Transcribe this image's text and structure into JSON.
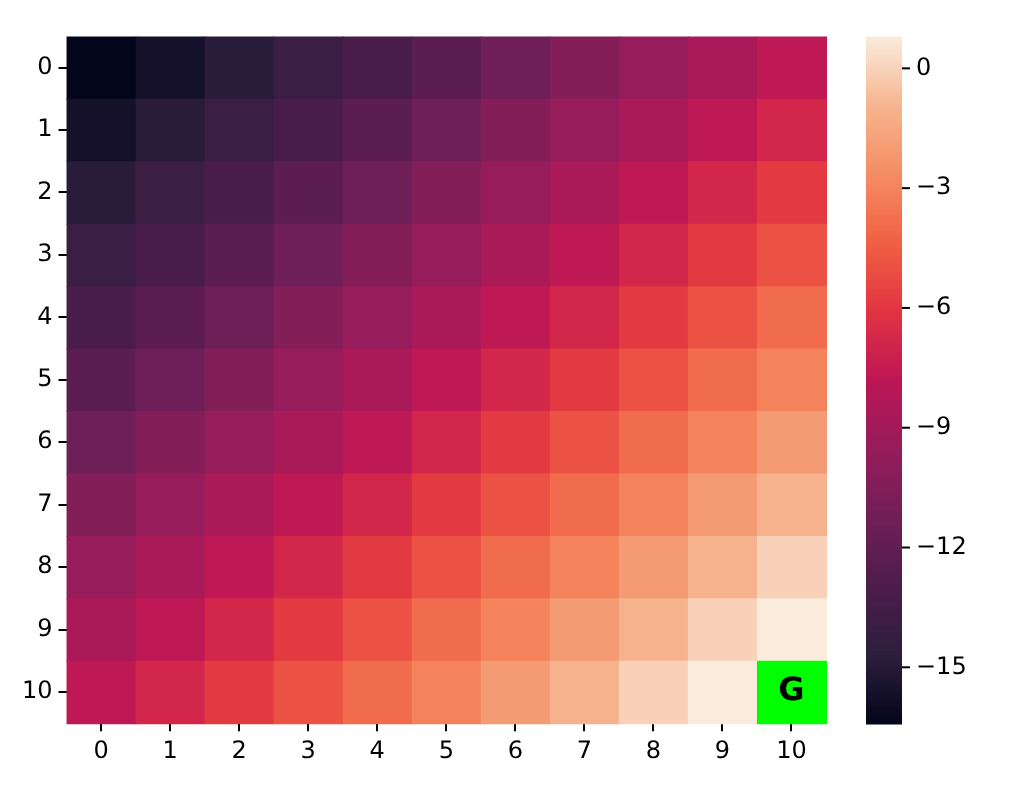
{
  "chart_data": {
    "type": "heatmap",
    "categories": [
      "0",
      "1",
      "2",
      "3",
      "4",
      "5",
      "6",
      "7",
      "8",
      "9",
      "10"
    ],
    "y_categories": [
      "0",
      "1",
      "2",
      "3",
      "4",
      "5",
      "6",
      "7",
      "8",
      "9",
      "10"
    ],
    "cells": [
      [
        -16.4,
        -15.6,
        -14.8,
        -13.9,
        -13.1,
        -12.2,
        -11.3,
        -10.4,
        -9.5,
        -8.6,
        -7.7
      ],
      [
        -15.6,
        -14.8,
        -13.9,
        -13.1,
        -12.2,
        -11.3,
        -10.4,
        -9.5,
        -8.6,
        -7.7,
        -6.8
      ],
      [
        -14.8,
        -13.9,
        -13.1,
        -12.2,
        -11.3,
        -10.4,
        -9.5,
        -8.6,
        -7.7,
        -6.8,
        -5.8
      ],
      [
        -13.9,
        -13.1,
        -12.2,
        -11.3,
        -10.4,
        -9.5,
        -8.6,
        -7.7,
        -6.8,
        -5.8,
        -4.9
      ],
      [
        -13.1,
        -12.2,
        -11.3,
        -10.4,
        -9.5,
        -8.6,
        -7.7,
        -6.8,
        -5.8,
        -4.9,
        -3.9
      ],
      [
        -12.2,
        -11.3,
        -10.4,
        -9.5,
        -8.6,
        -7.7,
        -6.8,
        -5.8,
        -4.9,
        -3.9,
        -3
      ],
      [
        -11.3,
        -10.4,
        -9.5,
        -8.6,
        -7.7,
        -6.8,
        -5.8,
        -4.9,
        -3.9,
        -3,
        -2
      ],
      [
        -10.4,
        -9.5,
        -8.6,
        -7.7,
        -6.8,
        -5.8,
        -4.9,
        -3.9,
        -3,
        -2,
        -1
      ],
      [
        -9.5,
        -8.6,
        -7.7,
        -6.8,
        -5.8,
        -4.9,
        -3.9,
        -3,
        -2,
        -1,
        0
      ],
      [
        -8.6,
        -7.7,
        -6.8,
        -5.8,
        -4.9,
        -3.9,
        -3,
        -2,
        -1,
        0,
        0.8
      ],
      [
        -7.7,
        -6.8,
        -5.8,
        -4.9,
        -3.9,
        -3,
        -2,
        -1,
        0,
        0.8,
        null
      ]
    ],
    "cell_labels": [
      [
        null,
        null,
        null,
        null,
        null,
        null,
        null,
        null,
        null,
        null,
        null
      ],
      [
        null,
        null,
        null,
        null,
        null,
        null,
        null,
        null,
        null,
        null,
        null
      ],
      [
        null,
        null,
        null,
        null,
        null,
        null,
        null,
        null,
        null,
        null,
        null
      ],
      [
        null,
        null,
        null,
        null,
        null,
        null,
        null,
        null,
        null,
        null,
        null
      ],
      [
        null,
        null,
        null,
        null,
        null,
        null,
        null,
        null,
        null,
        null,
        null
      ],
      [
        null,
        null,
        null,
        null,
        null,
        null,
        null,
        null,
        null,
        null,
        null
      ],
      [
        null,
        null,
        null,
        null,
        null,
        null,
        null,
        null,
        null,
        null,
        null
      ],
      [
        null,
        null,
        null,
        null,
        null,
        null,
        null,
        null,
        null,
        null,
        null
      ],
      [
        null,
        null,
        null,
        null,
        null,
        null,
        null,
        null,
        null,
        null,
        null
      ],
      [
        null,
        null,
        null,
        null,
        null,
        null,
        null,
        null,
        null,
        null,
        null
      ],
      [
        null,
        null,
        null,
        null,
        null,
        null,
        null,
        null,
        null,
        null,
        "G"
      ]
    ],
    "clim": [
      -16.4,
      0.8
    ],
    "cticks": [
      -15,
      -12,
      -9,
      -6,
      -3,
      0
    ]
  }
}
